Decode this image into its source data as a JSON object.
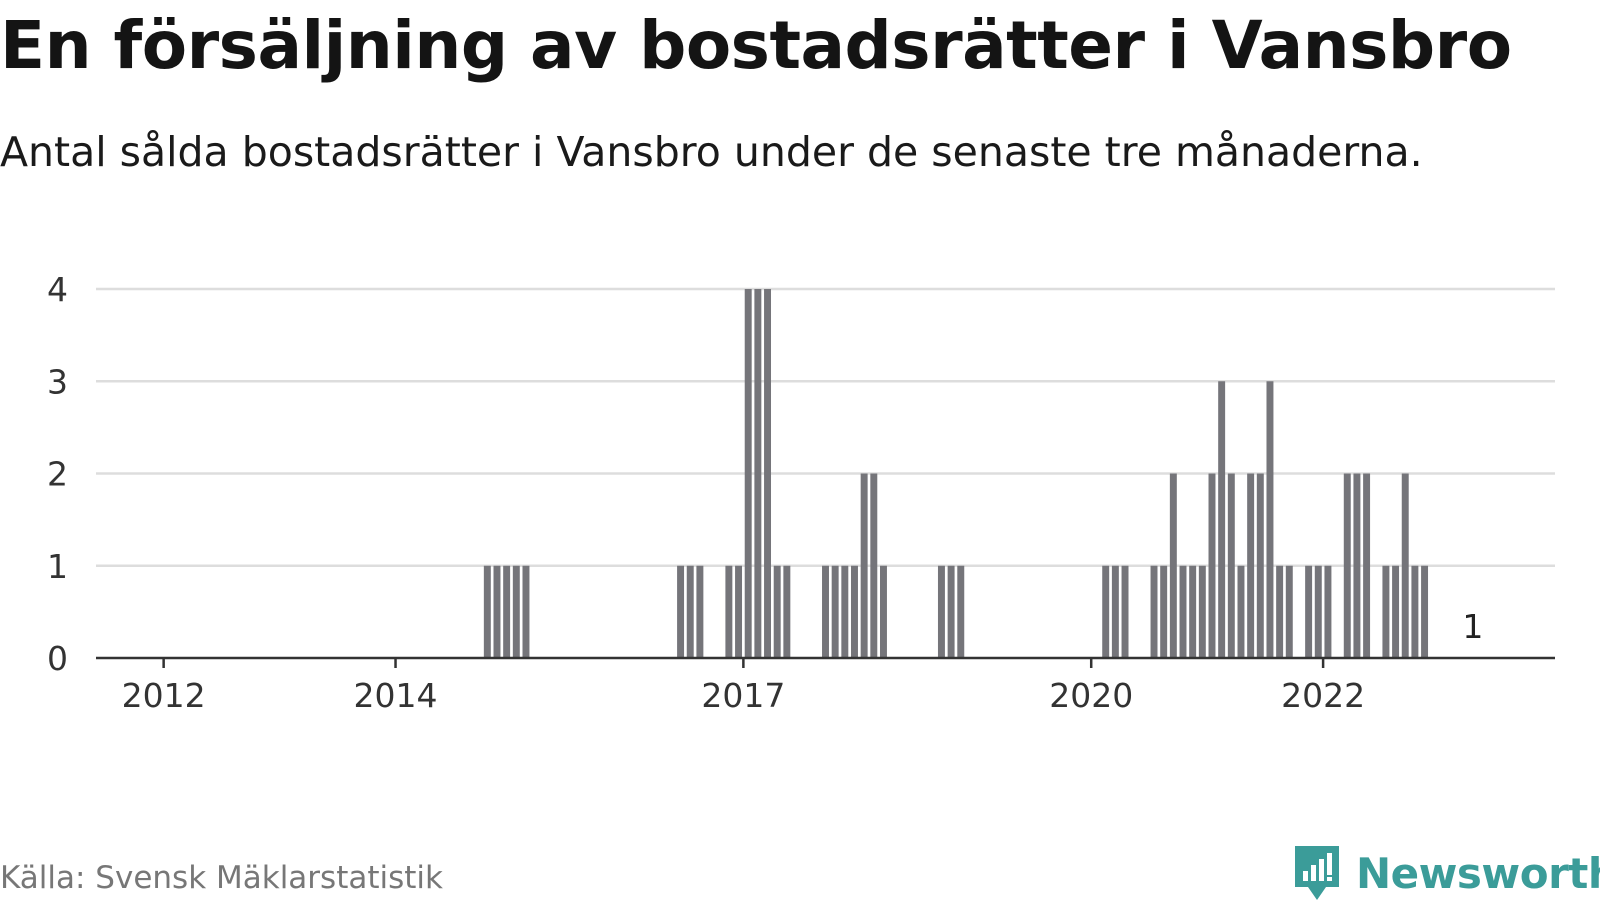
{
  "header": {
    "title": "En försäljning av bostadsrätter i Vansbro",
    "subtitle": "Antal sålda bostadsrätter i Vansbro under de senaste tre månaderna."
  },
  "footer": {
    "source": "Källa: Svensk Mäklarstatistik",
    "brand": "Newsworthy"
  },
  "colors": {
    "bar": "#75757a",
    "highlight": "#1a9e99",
    "grid": "#dddddd",
    "axis": "#333333",
    "brand": "#3b9c99"
  },
  "chart_data": {
    "type": "bar",
    "title": "En försäljning av bostadsrätter i Vansbro",
    "subtitle": "Antal sålda bostadsrätter i Vansbro under de senaste tre månaderna.",
    "x_unit": "month",
    "x_range": [
      "2011-06",
      "2023-12"
    ],
    "xticks": [
      "2012",
      "2014",
      "2017",
      "2020",
      "2022"
    ],
    "yticks": [
      0,
      1,
      2,
      3,
      4
    ],
    "ylim": [
      0,
      4
    ],
    "grid": true,
    "value_label": {
      "x": "2023-04",
      "text": "1"
    },
    "highlight_x": "2023-04",
    "bars": [
      {
        "x": "2014-10",
        "y": 1
      },
      {
        "x": "2014-11",
        "y": 1
      },
      {
        "x": "2014-12",
        "y": 1
      },
      {
        "x": "2015-01",
        "y": 1
      },
      {
        "x": "2015-02",
        "y": 1
      },
      {
        "x": "2016-06",
        "y": 1
      },
      {
        "x": "2016-07",
        "y": 1
      },
      {
        "x": "2016-08",
        "y": 1
      },
      {
        "x": "2016-11",
        "y": 1
      },
      {
        "x": "2016-12",
        "y": 1
      },
      {
        "x": "2017-01",
        "y": 4
      },
      {
        "x": "2017-02",
        "y": 4
      },
      {
        "x": "2017-03",
        "y": 4
      },
      {
        "x": "2017-04",
        "y": 1
      },
      {
        "x": "2017-05",
        "y": 1
      },
      {
        "x": "2017-09",
        "y": 1
      },
      {
        "x": "2017-10",
        "y": 1
      },
      {
        "x": "2017-11",
        "y": 1
      },
      {
        "x": "2017-12",
        "y": 1
      },
      {
        "x": "2018-01",
        "y": 2
      },
      {
        "x": "2018-02",
        "y": 2
      },
      {
        "x": "2018-03",
        "y": 1
      },
      {
        "x": "2018-09",
        "y": 1
      },
      {
        "x": "2018-10",
        "y": 1
      },
      {
        "x": "2018-11",
        "y": 1
      },
      {
        "x": "2020-02",
        "y": 1
      },
      {
        "x": "2020-03",
        "y": 1
      },
      {
        "x": "2020-04",
        "y": 1
      },
      {
        "x": "2020-07",
        "y": 1
      },
      {
        "x": "2020-08",
        "y": 1
      },
      {
        "x": "2020-09",
        "y": 2
      },
      {
        "x": "2020-10",
        "y": 1
      },
      {
        "x": "2020-11",
        "y": 1
      },
      {
        "x": "2020-12",
        "y": 1
      },
      {
        "x": "2021-01",
        "y": 2
      },
      {
        "x": "2021-02",
        "y": 3
      },
      {
        "x": "2021-03",
        "y": 2
      },
      {
        "x": "2021-04",
        "y": 1
      },
      {
        "x": "2021-05",
        "y": 2
      },
      {
        "x": "2021-06",
        "y": 2
      },
      {
        "x": "2021-07",
        "y": 3
      },
      {
        "x": "2021-08",
        "y": 1
      },
      {
        "x": "2021-09",
        "y": 1
      },
      {
        "x": "2021-11",
        "y": 1
      },
      {
        "x": "2021-12",
        "y": 1
      },
      {
        "x": "2022-01",
        "y": 1
      },
      {
        "x": "2022-03",
        "y": 2
      },
      {
        "x": "2022-04",
        "y": 2
      },
      {
        "x": "2022-05",
        "y": 2
      },
      {
        "x": "2022-07",
        "y": 1
      },
      {
        "x": "2022-08",
        "y": 1
      },
      {
        "x": "2022-09",
        "y": 2
      },
      {
        "x": "2022-10",
        "y": 1
      },
      {
        "x": "2022-11",
        "y": 1
      }
    ]
  }
}
